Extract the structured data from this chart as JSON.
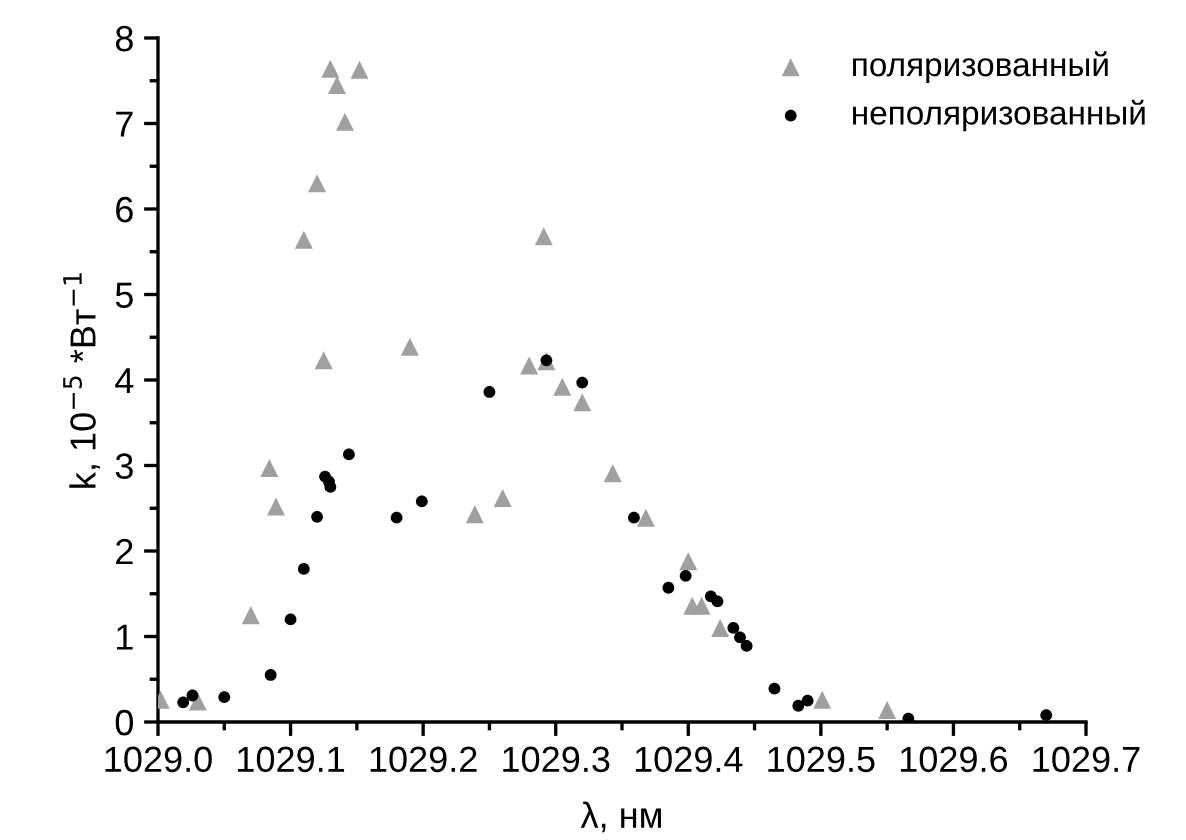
{
  "chart_data": {
    "type": "scatter",
    "xlabel": "λ, нм",
    "ylabel": "k, 10$^{−5}$ *Вт$^{−1}$",
    "xlim": [
      1029.0,
      1029.7
    ],
    "xticks": [
      {
        "value": 1029.0,
        "label": "1029.0"
      },
      {
        "value": 1029.1,
        "label": "1029.1"
      },
      {
        "value": 1029.2,
        "label": "1029.2"
      },
      {
        "value": 1029.3,
        "label": "1029.3"
      },
      {
        "value": 1029.4,
        "label": "1029.4"
      },
      {
        "value": 1029.5,
        "label": "1029.5"
      },
      {
        "value": 1029.6,
        "label": "1029.6"
      },
      {
        "value": 1029.7,
        "label": "1029.7"
      }
    ],
    "ylim": [
      0,
      8
    ],
    "yticks": [
      0,
      1,
      2,
      3,
      4,
      5,
      6,
      7,
      8
    ],
    "grid": false,
    "legend": "top right",
    "series": [
      {
        "name": "поляризованный",
        "color": "#a0a0a0",
        "marker": "triangle",
        "x": [
          1029.13,
          1029.152,
          1029.135,
          1029.141,
          1029.12,
          1029.11,
          1029.125,
          1029.19,
          1029.291,
          1029.28,
          1029.293,
          1029.305,
          1029.002,
          1029.03,
          1029.07,
          1029.084,
          1029.089,
          1029.239,
          1029.26,
          1029.32,
          1029.343,
          1029.368,
          1029.4,
          1029.403,
          1029.41,
          1029.424,
          1029.501,
          1029.55
        ],
        "values": [
          7.64,
          7.63,
          7.45,
          7.02,
          6.3,
          5.64,
          4.23,
          4.39,
          5.68,
          4.17,
          4.22,
          3.92,
          0.26,
          0.24,
          1.25,
          2.97,
          2.52,
          2.43,
          2.62,
          3.74,
          2.91,
          2.39,
          1.88,
          1.36,
          1.36,
          1.1,
          0.26,
          0.14
        ]
      },
      {
        "name": "неполяризованный",
        "color": "#000000",
        "marker": "circle",
        "x": [
          1029.019,
          1029.026,
          1029.05,
          1029.085,
          1029.1,
          1029.11,
          1029.12,
          1029.126,
          1029.129,
          1029.13,
          1029.144,
          1029.18,
          1029.199,
          1029.25,
          1029.32,
          1029.293,
          1029.359,
          1029.385,
          1029.398,
          1029.417,
          1029.422,
          1029.434,
          1029.439,
          1029.444,
          1029.465,
          1029.483,
          1029.49,
          1029.566,
          1029.67
        ],
        "values": [
          0.23,
          0.31,
          0.29,
          0.55,
          1.2,
          1.79,
          2.4,
          2.87,
          2.81,
          2.75,
          3.13,
          2.39,
          2.58,
          3.86,
          3.97,
          4.23,
          2.39,
          1.57,
          1.71,
          1.47,
          1.41,
          1.1,
          0.99,
          0.89,
          0.39,
          0.19,
          0.25,
          0.04,
          0.08
        ]
      }
    ]
  }
}
